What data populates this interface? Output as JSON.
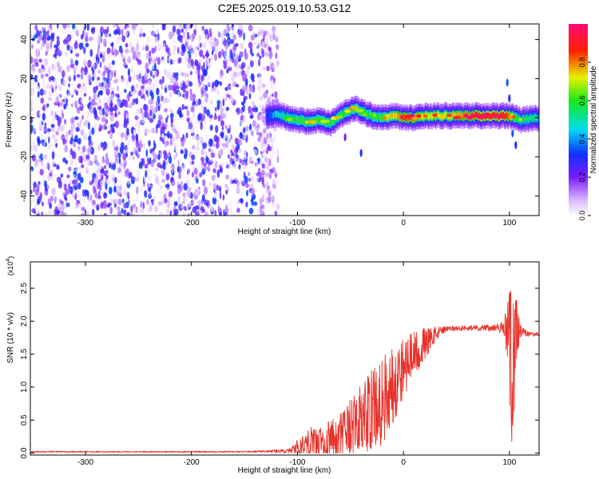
{
  "title": "C2E5.2025.019.10.53.G12",
  "chart_data": [
    {
      "type": "heatmap",
      "xlabel": "Height of straight line (km)",
      "ylabel": "Frequency (Hz)",
      "xlim": [
        -352,
        128
      ],
      "ylim": [
        -50,
        48
      ],
      "xticks": [
        "-300",
        "-200",
        "-100",
        "0",
        "100"
      ],
      "xtick_values": [
        -300,
        -200,
        -100,
        0,
        100
      ],
      "yticks": [
        "-40",
        "-20",
        "0",
        "20",
        "40"
      ],
      "ytick_values": [
        -40,
        -20,
        0,
        20,
        40
      ],
      "colorbar": {
        "label": "Normalized spectral amplitude",
        "range": [
          0.0,
          1.0
        ],
        "ticks": [
          "0.0",
          "0.2",
          "0.4",
          "0.6",
          "0.8"
        ],
        "tick_values": [
          0.0,
          0.2,
          0.4,
          0.6,
          0.8
        ],
        "colormap": "white-purple-blue-cyan-green-yellow-red-pink"
      },
      "regions": [
        {
          "name": "noise",
          "x_range": [
            -352,
            -118
          ],
          "freq_range": [
            -50,
            48
          ],
          "amplitude": [
            0.0,
            0.35
          ]
        },
        {
          "name": "signal",
          "x_range": [
            -128,
            128
          ],
          "center_freq_hz": 0,
          "amplitude": [
            0.3,
            1.0
          ]
        }
      ],
      "ridge": {
        "x": [
          -130,
          -120,
          -110,
          -100,
          -90,
          -80,
          -70,
          -60,
          -50,
          -45,
          -40,
          -30,
          -20,
          -10,
          0,
          10,
          20,
          40,
          60,
          80,
          95,
          100,
          105,
          110,
          128
        ],
        "freq": [
          1,
          2,
          0,
          -1,
          -2,
          -1,
          -3,
          1,
          4,
          5,
          3,
          1,
          0,
          1,
          0,
          0,
          1,
          1,
          1,
          1,
          1,
          1,
          0,
          -1,
          0
        ],
        "amplitude": [
          0.3,
          0.45,
          0.55,
          0.6,
          0.6,
          0.62,
          0.6,
          0.58,
          0.62,
          0.65,
          0.6,
          0.58,
          0.62,
          0.72,
          0.85,
          0.78,
          0.72,
          0.7,
          0.82,
          0.9,
          0.88,
          0.8,
          0.6,
          0.55,
          0.5
        ]
      }
    },
    {
      "type": "line",
      "xlabel": "Height of straight line (km)",
      "ylabel": "SNR (10 * v/v)",
      "y_scale_label": "(x10",
      "y_scale_exp": "4",
      "y_scale_suffix": ")",
      "xlim": [
        -352,
        128
      ],
      "ylim": [
        -0.03,
        2.9
      ],
      "xticks": [
        "-300",
        "-200",
        "-100",
        "0",
        "100"
      ],
      "xtick_values": [
        -300,
        -200,
        -100,
        0,
        100
      ],
      "yticks": [
        "0.0",
        "0.5",
        "1.0",
        "1.5",
        "2.0",
        "2.5"
      ],
      "ytick_values": [
        0.0,
        0.5,
        1.0,
        1.5,
        2.0,
        2.5
      ],
      "color": "#e8322a",
      "envelope": {
        "x": [
          -352,
          -150,
          -110,
          -100,
          -90,
          -80,
          -60,
          -40,
          -20,
          -10,
          0,
          10,
          20,
          30,
          40,
          60,
          80,
          90,
          95,
          98,
          100,
          102,
          104,
          106,
          108,
          110,
          115,
          120,
          128
        ],
        "mean": [
          0.02,
          0.02,
          0.03,
          0.08,
          0.18,
          0.15,
          0.25,
          0.5,
          0.8,
          1.05,
          1.3,
          1.5,
          1.65,
          1.8,
          1.88,
          1.9,
          1.9,
          1.9,
          1.88,
          1.85,
          1.6,
          1.3,
          1.2,
          1.5,
          1.9,
          1.85,
          1.82,
          1.8,
          1.8
        ],
        "amp": [
          0.01,
          0.01,
          0.03,
          0.12,
          0.25,
          0.22,
          0.35,
          0.55,
          0.7,
          0.6,
          0.5,
          0.35,
          0.25,
          0.12,
          0.04,
          0.04,
          0.05,
          0.06,
          0.15,
          0.45,
          0.9,
          1.25,
          1.2,
          0.9,
          0.4,
          0.1,
          0.05,
          0.03,
          0.03
        ]
      }
    }
  ]
}
